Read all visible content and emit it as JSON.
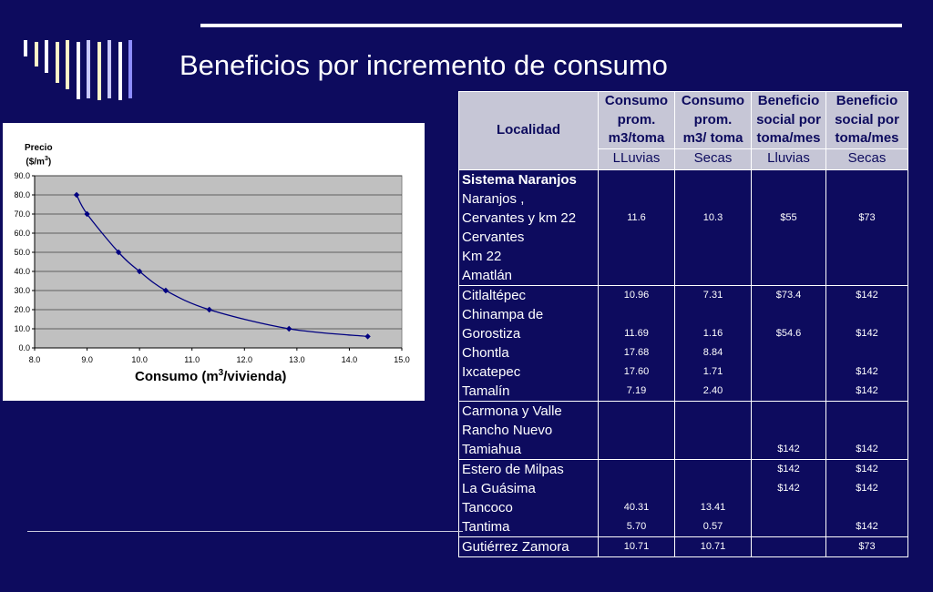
{
  "slide": {
    "title": "Beneficios por incremento de consumo"
  },
  "colors": {
    "background": "#0d0b5e",
    "header_fill": "#c6c6d6",
    "plot_area": "#c0c0c0",
    "series": "#000080",
    "deco_bars": [
      "#ffffff",
      "#fff5c8",
      "#ffffff",
      "#fff5c8",
      "#fff5c8",
      "#ffffff",
      "#c8c8ff",
      "#fff5c8",
      "#c8c8ff",
      "#ffffff",
      "#8c8cff"
    ]
  },
  "chart_data": {
    "type": "line",
    "title": "",
    "ylabel_line1": "Precio",
    "ylabel_line2": "($/m",
    "ylabel_sup": "3",
    "ylabel_close": ")",
    "xlabel_pre": "Consumo (m",
    "xlabel_sup": "3",
    "xlabel_post": "/vivienda)",
    "xlim": [
      8.0,
      15.0
    ],
    "ylim": [
      0.0,
      90.0
    ],
    "x_ticks": [
      "8.0",
      "9.0",
      "10.0",
      "11.0",
      "12.0",
      "13.0",
      "14.0",
      "15.0"
    ],
    "y_ticks": [
      "0.0",
      "10.0",
      "20.0",
      "30.0",
      "40.0",
      "50.0",
      "60.0",
      "70.0",
      "80.0",
      "90.0"
    ],
    "grid": true,
    "legend": "none",
    "series": [
      {
        "x": [
          8.8,
          9.0,
          9.6,
          10.0,
          10.5,
          11.33,
          12.85,
          14.35
        ],
        "y": [
          80,
          70,
          50,
          40,
          30,
          20,
          10,
          6
        ]
      }
    ]
  },
  "table": {
    "headers": {
      "localidad": "Localidad",
      "consumo_prom_1": [
        "Consumo",
        "prom.",
        "m3/toma"
      ],
      "consumo_prom_2": [
        "Consumo",
        "prom.",
        "m3/ toma"
      ],
      "beneficio_1": [
        "Beneficio",
        "social por",
        "toma/mes"
      ],
      "beneficio_2": [
        "Beneficio",
        "social por",
        "toma/mes"
      ]
    },
    "subheaders": [
      "LLuvias",
      "Secas",
      "Lluvias",
      "Secas"
    ],
    "groups": [
      {
        "lines": [
          "Sistema Naranjos",
          "Naranjos ,",
          "Cervantes y km 22",
          "Cervantes",
          "Km 22",
          "Amatlán"
        ],
        "c1": [
          "",
          "",
          "11.6",
          "",
          "",
          ""
        ],
        "c2": [
          "",
          "",
          "10.3",
          "",
          "",
          ""
        ],
        "c3": [
          "",
          "",
          "$55",
          "",
          "",
          ""
        ],
        "c4": [
          "",
          "",
          "$73",
          "",
          "",
          ""
        ]
      },
      {
        "lines": [
          "Citlaltépec",
          "Chinampa de",
          "Gorostiza",
          "Chontla",
          "Ixcatepec",
          "Tamalín"
        ],
        "c1": [
          "10.96",
          "",
          "11.69",
          "17.68",
          "17.60",
          "7.19"
        ],
        "c2": [
          "7.31",
          "",
          "1.16",
          "8.84",
          "1.71",
          "2.40"
        ],
        "c3": [
          "$73.4",
          "",
          "$54.6",
          "",
          "",
          ""
        ],
        "c4": [
          "$142",
          "",
          "$142",
          "",
          "$142",
          "$142"
        ]
      },
      {
        "lines": [
          "Carmona y Valle",
          "Rancho Nuevo",
          "Tamiahua"
        ],
        "c1": [
          "",
          "",
          ""
        ],
        "c2": [
          "",
          "",
          ""
        ],
        "c3": [
          "",
          "",
          "$142"
        ],
        "c4": [
          "",
          "",
          "$142"
        ]
      },
      {
        "lines": [
          "Estero de Milpas",
          "La Guásima",
          "Tancoco",
          "Tantima"
        ],
        "c1": [
          "",
          "",
          "40.31",
          "5.70"
        ],
        "c2": [
          "",
          "",
          "13.41",
          "0.57"
        ],
        "c3": [
          "$142",
          "$142",
          "",
          ""
        ],
        "c4": [
          "$142",
          "$142",
          "",
          "$142"
        ]
      },
      {
        "lines": [
          "Gutiérrez Zamora"
        ],
        "c1": [
          "10.71"
        ],
        "c2": [
          "10.71"
        ],
        "c3": [
          ""
        ],
        "c4": [
          "$73"
        ]
      }
    ]
  }
}
